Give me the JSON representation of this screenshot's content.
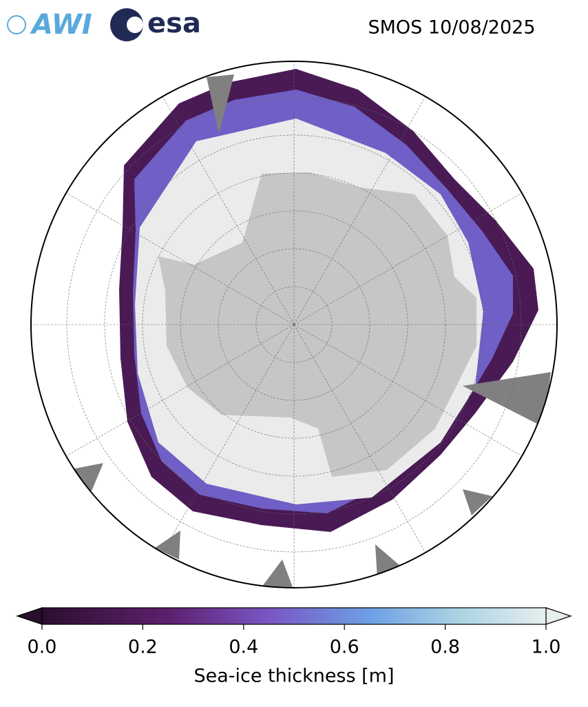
{
  "logos": {
    "awi": "AWI",
    "esa": "esa"
  },
  "title": "SMOS 10/08/2025",
  "colorbar": {
    "label": "Sea-ice thickness [m]",
    "range": [
      0,
      1
    ],
    "ticks": [
      {
        "value": 0,
        "label": "0.0"
      },
      0.2,
      0.4,
      0.6,
      0.8,
      {
        "value": 1,
        "label": "1.0"
      }
    ],
    "colormap": [
      {
        "value": 0,
        "color": "#2b0f2f"
      },
      {
        "value": 0.25,
        "color": "#5e1e6e"
      },
      {
        "value": 0.45,
        "color": "#7857c4"
      },
      {
        "value": 0.65,
        "color": "#6d9fe4"
      },
      {
        "value": 0.82,
        "color": "#a8d2e4"
      },
      {
        "value": 1,
        "color": "#e6eeee"
      }
    ]
  }
}
